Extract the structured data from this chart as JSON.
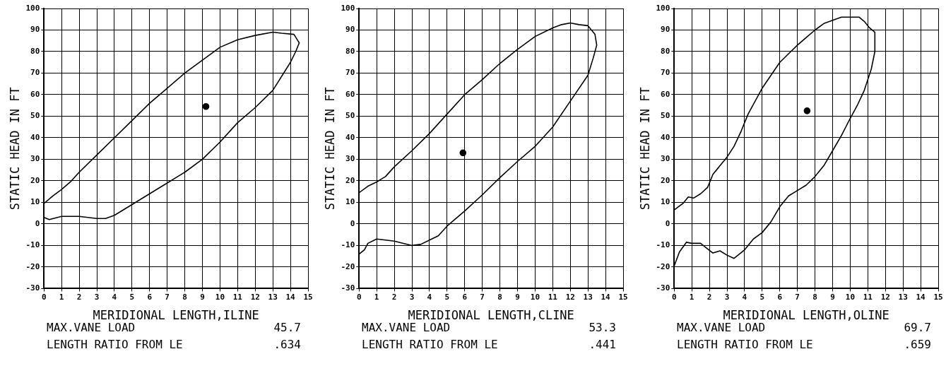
{
  "chart_data": [
    {
      "type": "line",
      "xlabel": "MERIDIONAL LENGTH,ILINE",
      "ylabel": "STATIC HEAD IN FT",
      "xlim": [
        0,
        15
      ],
      "xticks": [
        0,
        1,
        2,
        3,
        4,
        5,
        6,
        7,
        8,
        9,
        10,
        11,
        12,
        13,
        14,
        15
      ],
      "ylim": [
        -30,
        100
      ],
      "yticks": [
        -30,
        -20,
        -10,
        0,
        10,
        20,
        30,
        40,
        50,
        60,
        70,
        80,
        90,
        100
      ],
      "grid": true,
      "series": [
        {
          "type": "line",
          "marker": "none",
          "color": "#000000",
          "x": [
            0,
            0.5,
            1,
            1.5,
            2,
            3,
            4,
            5,
            6,
            7,
            8,
            9,
            10,
            11,
            12,
            13,
            13.5,
            14.2,
            14.5,
            14.3,
            14,
            13,
            12,
            11,
            10,
            9,
            8,
            7,
            6,
            5,
            4,
            3.5,
            3,
            2,
            1,
            0.3,
            0
          ],
          "values": [
            9.5,
            13,
            16,
            19.5,
            24,
            32,
            40,
            48,
            56,
            63,
            70,
            76,
            82,
            85.5,
            87.5,
            89,
            88.5,
            88,
            84,
            80,
            75,
            62,
            54,
            47,
            38,
            30,
            24,
            19,
            14,
            9,
            4,
            2.5,
            2.5,
            3.5,
            3.5,
            2,
            3
          ]
        },
        {
          "type": "scatter",
          "marker": "circle",
          "color": "#000000",
          "x": [
            9.2
          ],
          "values": [
            54.5
          ]
        }
      ],
      "annotations": [
        "MAX.VANE LOAD",
        "45.7",
        "LENGTH RATIO FROM LE",
        ".634"
      ]
    },
    {
      "type": "line",
      "xlabel": "MERIDIONAL LENGTH,CLINE",
      "ylabel": "STATIC HEAD IN FT",
      "xlim": [
        0,
        15
      ],
      "xticks": [
        0,
        1,
        2,
        3,
        4,
        5,
        6,
        7,
        8,
        9,
        10,
        11,
        12,
        13,
        14,
        15
      ],
      "ylim": [
        -30,
        100
      ],
      "yticks": [
        -30,
        -20,
        -10,
        0,
        10,
        20,
        30,
        40,
        50,
        60,
        70,
        80,
        90,
        100
      ],
      "grid": true,
      "series": [
        {
          "type": "line",
          "marker": "none",
          "color": "#000000",
          "x": [
            0,
            0.5,
            1,
            1.5,
            2,
            3,
            4,
            5,
            6,
            7,
            8,
            9,
            10,
            11,
            11.5,
            12,
            12.5,
            13,
            13.4,
            13.5,
            13.3,
            13,
            12,
            11,
            10,
            9,
            8,
            7,
            6,
            5,
            4.5,
            4,
            3.5,
            3,
            2,
            1,
            0.5,
            0.3,
            0
          ],
          "values": [
            14.5,
            17.5,
            19.5,
            22,
            26.5,
            34,
            42,
            51,
            60,
            67,
            74.5,
            81,
            87,
            91,
            92.5,
            93.3,
            92.5,
            92,
            88,
            83,
            77,
            69,
            57,
            45,
            36,
            29,
            21.5,
            13.5,
            6,
            -1,
            -5.5,
            -7.5,
            -9.5,
            -10,
            -8,
            -7,
            -9,
            -12,
            -14
          ]
        },
        {
          "type": "scatter",
          "marker": "circle",
          "color": "#000000",
          "x": [
            5.9
          ],
          "values": [
            33
          ]
        }
      ],
      "annotations": [
        "MAX.VANE LOAD",
        "53.3",
        "LENGTH RATIO FROM LE",
        ".441"
      ]
    },
    {
      "type": "line",
      "xlabel": "MERIDIONAL LENGTH,OLINE",
      "ylabel": "STATIC HEAD IN FT",
      "xlim": [
        0,
        15
      ],
      "xticks": [
        0,
        1,
        2,
        3,
        4,
        5,
        6,
        7,
        8,
        9,
        10,
        11,
        12,
        13,
        14,
        15
      ],
      "ylim": [
        -30,
        100
      ],
      "yticks": [
        -30,
        -20,
        -10,
        0,
        10,
        20,
        30,
        40,
        50,
        60,
        70,
        80,
        90,
        100
      ],
      "grid": true,
      "series": [
        {
          "type": "line",
          "marker": "none",
          "color": "#000000",
          "x": [
            0,
            0.5,
            0.8,
            1.1,
            1.5,
            1.9,
            2.2,
            2.6,
            3,
            3.4,
            3.8,
            4.2,
            4.6,
            5,
            5.5,
            6,
            6.5,
            7,
            7.5,
            8,
            8.5,
            9,
            9.5,
            10,
            10.5,
            10.8,
            11.1,
            11.4,
            11.4,
            11.2,
            10.8,
            10.4,
            10,
            9.5,
            9,
            8.5,
            8,
            7.5,
            7,
            6.5,
            6,
            5.5,
            5,
            4.5,
            4,
            3.7,
            3.4,
            3,
            2.6,
            2.2,
            1.8,
            1.5,
            1,
            0.7,
            0.3,
            0
          ],
          "values": [
            6.5,
            9.5,
            12.5,
            12,
            14,
            17,
            23,
            27,
            31,
            36,
            43,
            51,
            57,
            63,
            69,
            75,
            79,
            83,
            86.5,
            90,
            93,
            94.5,
            96,
            96,
            96,
            94,
            91,
            89,
            80,
            72,
            62,
            55,
            49,
            41,
            34,
            27,
            22,
            18,
            15.5,
            13,
            8,
            1,
            -4,
            -7,
            -12,
            -14,
            -16,
            -14.5,
            -12.5,
            -13.5,
            -11,
            -9,
            -9,
            -8.5,
            -13,
            -19.5
          ]
        },
        {
          "type": "scatter",
          "marker": "circle",
          "color": "#000000",
          "x": [
            7.55
          ],
          "values": [
            52.5
          ]
        }
      ],
      "annotations": [
        "MAX.VANE LOAD",
        "69.7",
        "LENGTH RATIO FROM LE",
        ".659"
      ]
    }
  ]
}
